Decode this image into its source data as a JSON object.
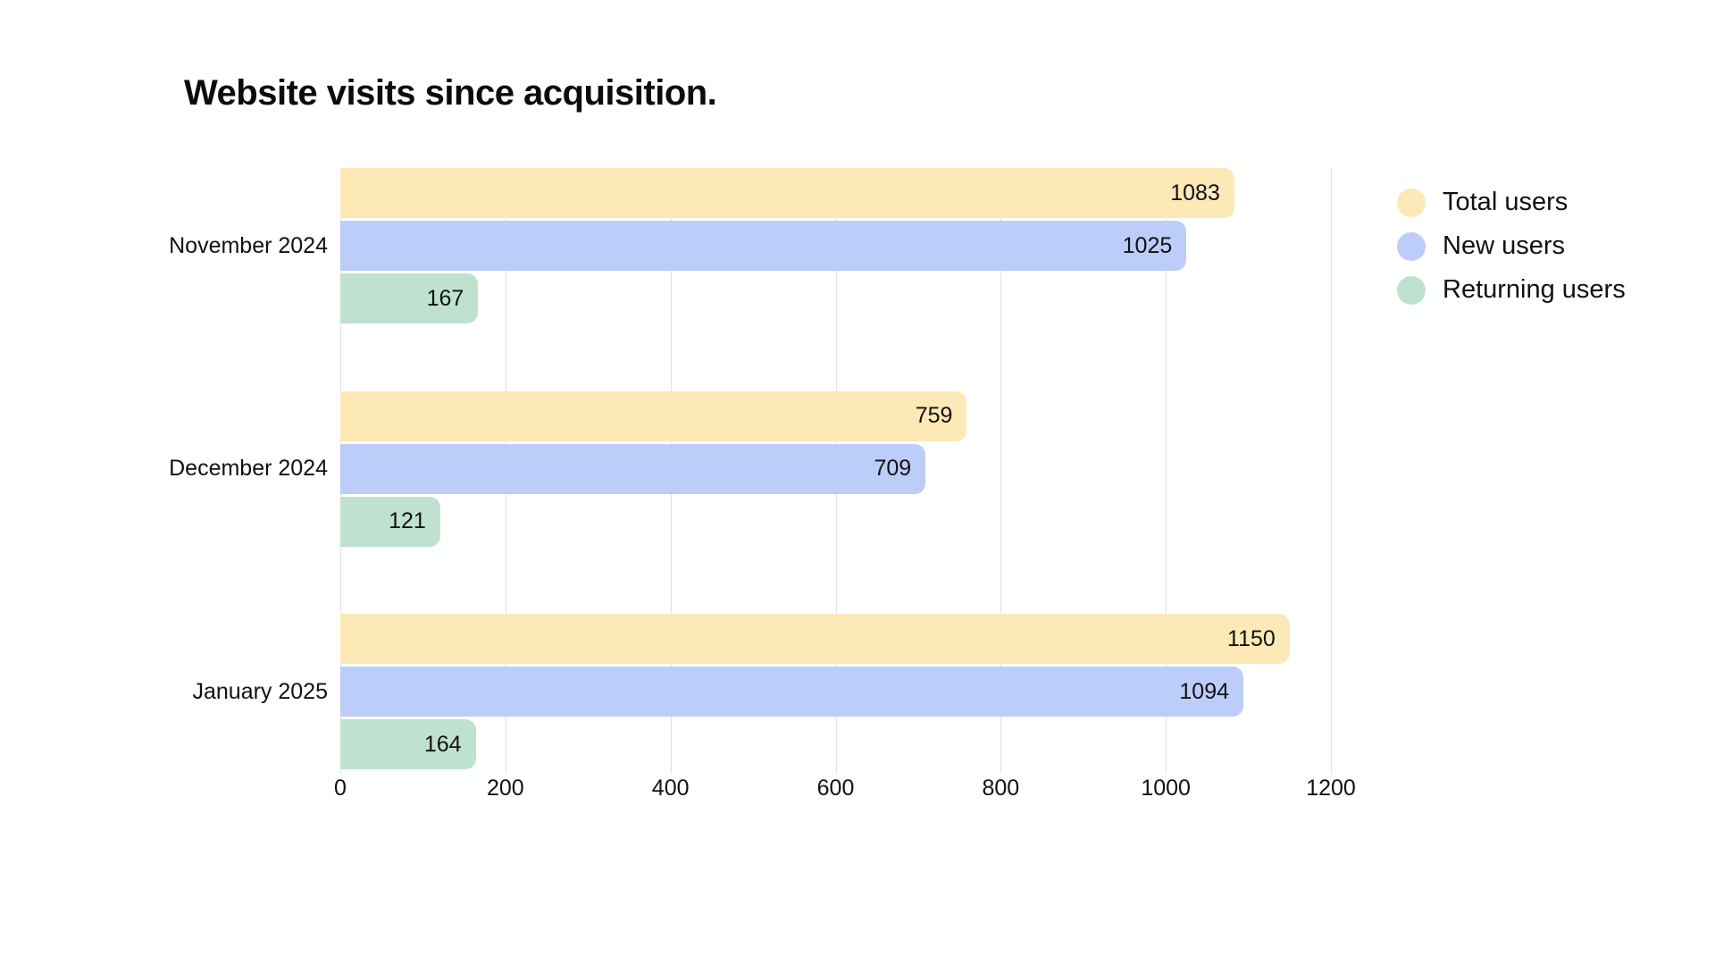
{
  "title": "Website visits since acquisition.",
  "colors": {
    "total_users": "#FCE9B6",
    "new_users": "#BDCDF9",
    "returning_users": "#BFE2D0",
    "gridline": "#e2e2e2",
    "text": "#111111"
  },
  "legend": {
    "items": [
      {
        "label": "Total users",
        "color": "#FCE9B6"
      },
      {
        "label": "New users",
        "color": "#BDCDF9"
      },
      {
        "label": "Returning users",
        "color": "#BFE2D0"
      }
    ]
  },
  "chart_data": {
    "type": "bar",
    "orientation": "horizontal",
    "title": "Website visits since acquisition.",
    "categories": [
      "November 2024",
      "December 2024",
      "January 2025"
    ],
    "series": [
      {
        "name": "Total users",
        "color": "#FCE9B6",
        "values": [
          1083,
          759,
          1150
        ]
      },
      {
        "name": "New users",
        "color": "#BDCDF9",
        "values": [
          1025,
          709,
          1094
        ]
      },
      {
        "name": "Returning users",
        "color": "#BFE2D0",
        "values": [
          167,
          121,
          164
        ]
      }
    ],
    "xlabel": "",
    "ylabel": "",
    "xlim": [
      0,
      1200
    ],
    "x_ticks": [
      0,
      200,
      400,
      600,
      800,
      1000,
      1200
    ],
    "grid": true,
    "legend_position": "right",
    "value_labels": "inside-end"
  }
}
